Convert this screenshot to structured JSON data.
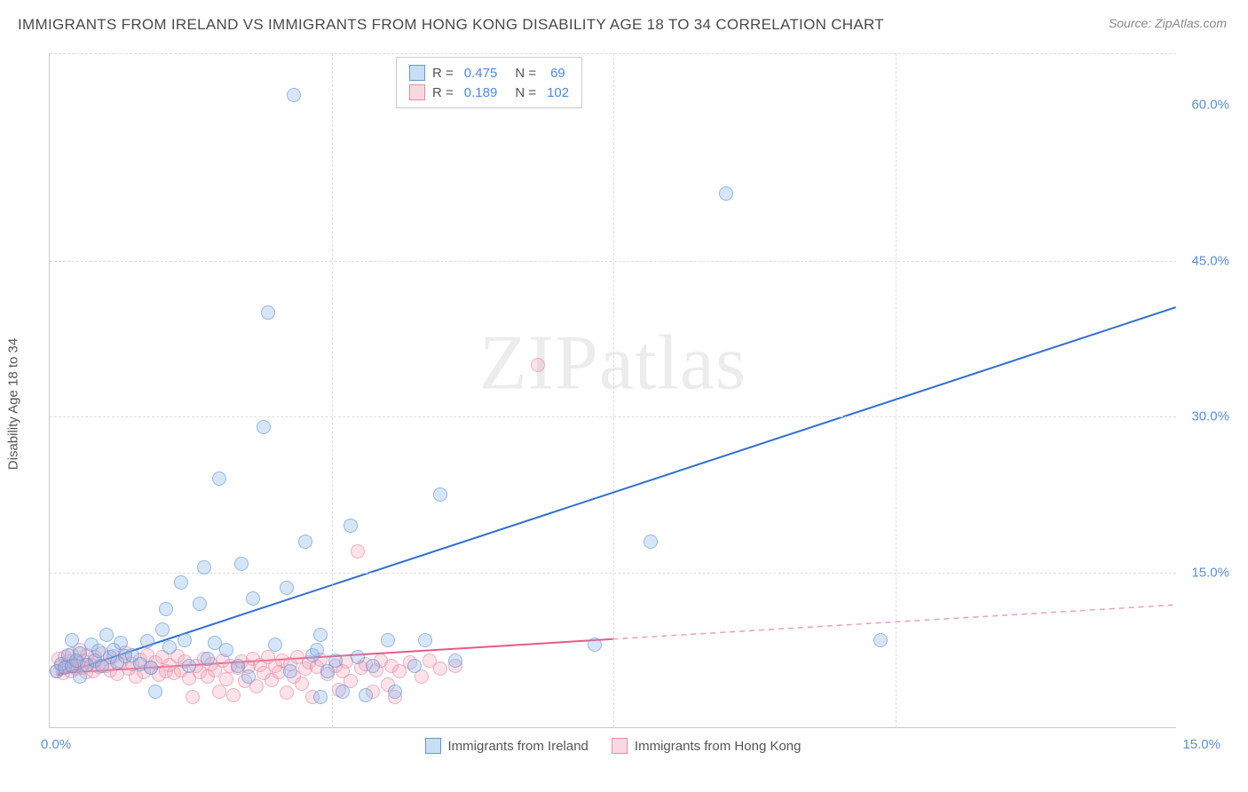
{
  "header": {
    "title": "IMMIGRANTS FROM IRELAND VS IMMIGRANTS FROM HONG KONG DISABILITY AGE 18 TO 34 CORRELATION CHART",
    "source": "Source: ZipAtlas.com"
  },
  "chart": {
    "type": "scatter",
    "y_label": "Disability Age 18 to 34",
    "watermark": "ZIPatlas",
    "xlim": [
      0,
      15
    ],
    "ylim": [
      0,
      65
    ],
    "x_ticks": [
      "0.0%",
      "15.0%"
    ],
    "y_ticks": [
      {
        "v": 15,
        "label": "15.0%"
      },
      {
        "v": 30,
        "label": "30.0%"
      },
      {
        "v": 45,
        "label": "45.0%"
      },
      {
        "v": 60,
        "label": "60.0%"
      }
    ],
    "grid_h": [
      15,
      30,
      45,
      65
    ],
    "grid_v": [
      3.75,
      7.5,
      11.25
    ],
    "background_color": "#ffffff",
    "grid_color": "#dddddd",
    "axis_color": "#cccccc",
    "tick_color": "#5a8fd6",
    "series": {
      "ireland": {
        "label": "Immigrants from Ireland",
        "color_fill": "rgba(135,180,230,0.45)",
        "color_stroke": "#5a8fd6",
        "r_value": "0.475",
        "n_value": "69",
        "marker_radius": 8,
        "trend": {
          "x1": 0.1,
          "y1": 5.0,
          "x2": 15.0,
          "y2": 40.5,
          "color": "#2f6fd0",
          "width": 2
        },
        "points": [
          [
            0.1,
            5.5
          ],
          [
            0.15,
            6.2
          ],
          [
            0.2,
            5.8
          ],
          [
            0.25,
            7.0
          ],
          [
            0.3,
            6.0
          ],
          [
            0.3,
            8.5
          ],
          [
            0.35,
            6.5
          ],
          [
            0.4,
            7.2
          ],
          [
            0.4,
            5.0
          ],
          [
            0.5,
            6.1
          ],
          [
            0.55,
            8.0
          ],
          [
            0.6,
            6.5
          ],
          [
            0.65,
            7.4
          ],
          [
            0.7,
            6.0
          ],
          [
            0.75,
            9.0
          ],
          [
            0.8,
            6.8
          ],
          [
            0.85,
            7.5
          ],
          [
            0.9,
            6.3
          ],
          [
            0.95,
            8.2
          ],
          [
            1.0,
            6.9
          ],
          [
            1.1,
            7.0
          ],
          [
            1.2,
            6.2
          ],
          [
            1.3,
            8.4
          ],
          [
            1.35,
            5.8
          ],
          [
            1.5,
            9.5
          ],
          [
            1.55,
            11.5
          ],
          [
            1.6,
            7.8
          ],
          [
            1.75,
            14.0
          ],
          [
            1.8,
            8.5
          ],
          [
            1.85,
            6.0
          ],
          [
            2.0,
            12.0
          ],
          [
            2.05,
            15.5
          ],
          [
            2.1,
            6.7
          ],
          [
            2.2,
            8.2
          ],
          [
            2.25,
            24.0
          ],
          [
            2.35,
            7.5
          ],
          [
            2.5,
            6.0
          ],
          [
            2.55,
            15.8
          ],
          [
            2.65,
            5.0
          ],
          [
            2.7,
            12.5
          ],
          [
            2.85,
            29.0
          ],
          [
            2.9,
            40.0
          ],
          [
            3.0,
            8.0
          ],
          [
            3.15,
            13.5
          ],
          [
            3.2,
            5.5
          ],
          [
            3.25,
            61.0
          ],
          [
            3.4,
            18.0
          ],
          [
            3.5,
            7.0
          ],
          [
            3.55,
            7.5
          ],
          [
            3.6,
            9.0
          ],
          [
            3.6,
            3.0
          ],
          [
            3.7,
            5.5
          ],
          [
            3.8,
            6.5
          ],
          [
            3.9,
            3.5
          ],
          [
            4.0,
            19.5
          ],
          [
            4.1,
            6.8
          ],
          [
            4.2,
            3.2
          ],
          [
            4.3,
            6.0
          ],
          [
            4.5,
            8.5
          ],
          [
            4.6,
            3.5
          ],
          [
            4.85,
            6.0
          ],
          [
            5.0,
            8.5
          ],
          [
            5.2,
            22.5
          ],
          [
            5.4,
            6.5
          ],
          [
            7.25,
            8.0
          ],
          [
            8.0,
            18.0
          ],
          [
            9.0,
            51.5
          ],
          [
            11.05,
            8.5
          ],
          [
            1.4,
            3.5
          ]
        ]
      },
      "hongkong": {
        "label": "Immigrants from Hong Kong",
        "color_fill": "rgba(240,160,180,0.4)",
        "color_stroke": "#e682a0",
        "r_value": "0.189",
        "n_value": "102",
        "marker_radius": 8,
        "trend_solid": {
          "x1": 0.1,
          "y1": 5.2,
          "x2": 7.5,
          "y2": 8.5,
          "color": "#e55a87",
          "width": 2
        },
        "trend_dash": {
          "x1": 7.5,
          "y1": 8.5,
          "x2": 15.0,
          "y2": 11.8,
          "color": "#e8a0b5",
          "width": 1.5
        },
        "points": [
          [
            0.1,
            5.5
          ],
          [
            0.12,
            6.7
          ],
          [
            0.15,
            6.0
          ],
          [
            0.18,
            5.3
          ],
          [
            0.2,
            6.8
          ],
          [
            0.22,
            5.9
          ],
          [
            0.25,
            6.4
          ],
          [
            0.28,
            5.5
          ],
          [
            0.3,
            7.1
          ],
          [
            0.32,
            6.0
          ],
          [
            0.35,
            5.7
          ],
          [
            0.38,
            6.3
          ],
          [
            0.4,
            7.5
          ],
          [
            0.42,
            5.8
          ],
          [
            0.45,
            6.5
          ],
          [
            0.48,
            5.4
          ],
          [
            0.5,
            7.0
          ],
          [
            0.55,
            6.1
          ],
          [
            0.58,
            5.5
          ],
          [
            0.6,
            6.8
          ],
          [
            0.65,
            5.9
          ],
          [
            0.7,
            7.2
          ],
          [
            0.75,
            6.0
          ],
          [
            0.8,
            5.6
          ],
          [
            0.85,
            6.9
          ],
          [
            0.9,
            5.2
          ],
          [
            0.95,
            6.4
          ],
          [
            1.0,
            7.3
          ],
          [
            1.05,
            5.7
          ],
          [
            1.1,
            6.2
          ],
          [
            1.15,
            5.0
          ],
          [
            1.2,
            6.6
          ],
          [
            1.25,
            5.4
          ],
          [
            1.3,
            7.0
          ],
          [
            1.35,
            5.8
          ],
          [
            1.4,
            6.3
          ],
          [
            1.45,
            5.1
          ],
          [
            1.5,
            6.8
          ],
          [
            1.55,
            5.5
          ],
          [
            1.6,
            6.1
          ],
          [
            1.65,
            5.3
          ],
          [
            1.7,
            6.9
          ],
          [
            1.75,
            5.6
          ],
          [
            1.8,
            6.4
          ],
          [
            1.85,
            4.8
          ],
          [
            1.9,
            3.0
          ],
          [
            1.95,
            6.0
          ],
          [
            2.0,
            5.4
          ],
          [
            2.05,
            6.7
          ],
          [
            2.1,
            5.0
          ],
          [
            2.15,
            6.2
          ],
          [
            2.2,
            5.6
          ],
          [
            2.25,
            3.5
          ],
          [
            2.3,
            6.5
          ],
          [
            2.35,
            4.7
          ],
          [
            2.4,
            6.0
          ],
          [
            2.45,
            3.2
          ],
          [
            2.5,
            5.8
          ],
          [
            2.55,
            6.4
          ],
          [
            2.6,
            4.5
          ],
          [
            2.65,
            5.9
          ],
          [
            2.7,
            6.7
          ],
          [
            2.75,
            4.0
          ],
          [
            2.8,
            6.1
          ],
          [
            2.85,
            5.3
          ],
          [
            2.9,
            6.8
          ],
          [
            2.95,
            4.6
          ],
          [
            3.0,
            6.0
          ],
          [
            3.05,
            5.4
          ],
          [
            3.1,
            6.5
          ],
          [
            3.15,
            3.4
          ],
          [
            3.2,
            6.2
          ],
          [
            3.25,
            5.0
          ],
          [
            3.3,
            6.8
          ],
          [
            3.35,
            4.3
          ],
          [
            3.4,
            5.7
          ],
          [
            3.45,
            6.3
          ],
          [
            3.5,
            3.0
          ],
          [
            3.55,
            5.9
          ],
          [
            3.6,
            6.6
          ],
          [
            3.7,
            5.2
          ],
          [
            3.8,
            6.0
          ],
          [
            3.85,
            3.7
          ],
          [
            3.9,
            5.5
          ],
          [
            3.95,
            6.4
          ],
          [
            4.0,
            4.5
          ],
          [
            4.1,
            17.0
          ],
          [
            4.15,
            5.8
          ],
          [
            4.2,
            6.2
          ],
          [
            4.3,
            3.5
          ],
          [
            4.35,
            5.6
          ],
          [
            4.4,
            6.5
          ],
          [
            4.5,
            4.2
          ],
          [
            4.55,
            6.0
          ],
          [
            4.65,
            5.5
          ],
          [
            4.8,
            6.3
          ],
          [
            4.95,
            5.0
          ],
          [
            5.05,
            6.5
          ],
          [
            5.2,
            5.7
          ],
          [
            5.4,
            6.0
          ],
          [
            6.5,
            35.0
          ],
          [
            4.6,
            3.0
          ]
        ]
      }
    },
    "legend_box": {
      "r_label": "R =",
      "n_label": "N ="
    },
    "bottom_legend": {
      "ireland": "Immigrants from Ireland",
      "hongkong": "Immigrants from Hong Kong"
    }
  }
}
